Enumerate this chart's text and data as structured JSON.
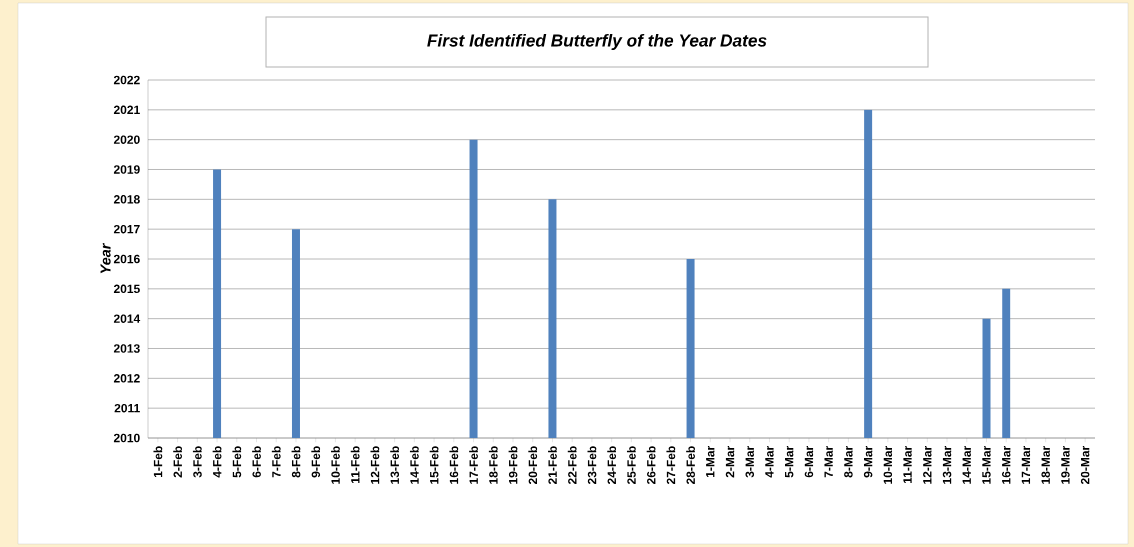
{
  "chart_data": {
    "type": "bar",
    "title": "First Identified Butterfly of the Year Dates",
    "ylabel": "Year",
    "categories": [
      "1-Feb",
      "2-Feb",
      "3-Feb",
      "4-Feb",
      "5-Feb",
      "6-Feb",
      "7-Feb",
      "8-Feb",
      "9-Feb",
      "10-Feb",
      "11-Feb",
      "12-Feb",
      "13-Feb",
      "14-Feb",
      "15-Feb",
      "16-Feb",
      "17-Feb",
      "18-Feb",
      "19-Feb",
      "20-Feb",
      "21-Feb",
      "22-Feb",
      "23-Feb",
      "24-Feb",
      "25-Feb",
      "26-Feb",
      "27-Feb",
      "28-Feb",
      "1-Mar",
      "2-Mar",
      "3-Mar",
      "4-Mar",
      "5-Mar",
      "6-Mar",
      "7-Mar",
      "8-Mar",
      "9-Mar",
      "10-Mar",
      "11-Mar",
      "12-Mar",
      "13-Mar",
      "14-Mar",
      "15-Mar",
      "16-Mar",
      "17-Mar",
      "18-Mar",
      "19-Mar",
      "20-Mar"
    ],
    "values": [
      null,
      null,
      null,
      2019,
      null,
      null,
      null,
      2017,
      null,
      null,
      null,
      null,
      null,
      null,
      null,
      null,
      2020,
      null,
      null,
      null,
      2018,
      null,
      null,
      null,
      null,
      null,
      null,
      2016,
      null,
      null,
      null,
      null,
      null,
      null,
      null,
      null,
      2021,
      null,
      null,
      null,
      null,
      null,
      2014,
      2015,
      null,
      null,
      null,
      null
    ],
    "color": "#4f81bd",
    "ylim": [
      2010,
      2022
    ],
    "yticks": [
      2010,
      2011,
      2012,
      2013,
      2014,
      2015,
      2016,
      2017,
      2018,
      2019,
      2020,
      2021,
      2022
    ],
    "grid": "y"
  }
}
